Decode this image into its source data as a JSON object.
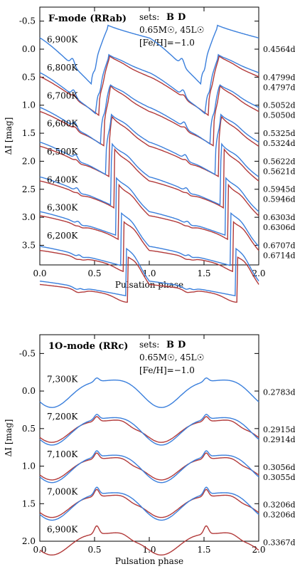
{
  "colors": {
    "set_B": "#3a7fdc",
    "set_D": "#b23a3a",
    "axis": "#000000"
  },
  "chart_data": [
    {
      "type": "line",
      "title": "F-mode (RRab)",
      "xlabel": "Pulsation phase",
      "ylabel": "ΔI [mag]",
      "xlim": [
        0.0,
        2.0
      ],
      "ylim": [
        -0.75,
        3.85
      ],
      "y_inverted": true,
      "x_ticks": [
        "0.0",
        "0.5",
        "1.0",
        "1.5",
        "2.0"
      ],
      "y_ticks": [
        "-0.5",
        "0.0",
        "0.5",
        "1.0",
        "1.5",
        "2.0",
        "2.5",
        "3.0",
        "3.5"
      ],
      "legend": {
        "sets_label": "sets:",
        "set_B": "B",
        "set_D": "D",
        "params_line1": "0.65M☉, 45L☉",
        "params_line2": "[Fe/H]=−1.0"
      },
      "models": [
        {
          "teff": "6,900K",
          "offset": 0.0,
          "period_B": "0.4564d",
          "period_D": ""
        },
        {
          "teff": "6,800K",
          "offset": 0.5,
          "period_B": "0.4799d",
          "period_D": "0.4797d"
        },
        {
          "teff": "6,700K",
          "offset": 1.0,
          "period_B": "0.5052d",
          "period_D": "0.5050d"
        },
        {
          "teff": "6,600K",
          "offset": 1.5,
          "period_B": "0.5325d",
          "period_D": "0.5324d"
        },
        {
          "teff": "6,500K",
          "offset": 2.0,
          "period_B": "0.5622d",
          "period_D": "0.5621d"
        },
        {
          "teff": "6,400K",
          "offset": 2.5,
          "period_B": "0.5945d",
          "period_D": "0.5946d"
        },
        {
          "teff": "6,300K",
          "offset": 3.0,
          "period_B": "0.6303d",
          "period_D": "0.6306d"
        },
        {
          "teff": "6,200K",
          "offset": 3.5,
          "period_B": "0.6707d",
          "period_D": "0.6714d"
        }
      ]
    },
    {
      "type": "line",
      "title": "1O-mode (RRc)",
      "xlabel": "Pulsation phase",
      "ylabel": "ΔI [mag]",
      "xlim": [
        0.0,
        2.0
      ],
      "ylim": [
        -0.75,
        2.0
      ],
      "y_inverted": true,
      "x_ticks": [
        "0.0",
        "0.5",
        "1.0",
        "1.5",
        "2.0"
      ],
      "y_ticks": [
        "-0.5",
        "0.0",
        "0.5",
        "1.0",
        "1.5",
        "2.0"
      ],
      "legend": {
        "sets_label": "sets:",
        "set_B": "B",
        "set_D": "D",
        "params_line1": "0.65M☉, 45L☉",
        "params_line2": "[Fe/H]=−1.0"
      },
      "models": [
        {
          "teff": "7,300K",
          "offset": 0.0,
          "period_B": "0.2783d",
          "period_D": ""
        },
        {
          "teff": "7,200K",
          "offset": 0.5,
          "period_B": "0.2915d",
          "period_D": "0.2914d"
        },
        {
          "teff": "7,100K",
          "offset": 1.0,
          "period_B": "0.3056d",
          "period_D": "0.3055d"
        },
        {
          "teff": "7,000K",
          "offset": 1.5,
          "period_B": "0.3206d",
          "period_D": "0.3206d"
        },
        {
          "teff": "6,900K",
          "offset": 2.0,
          "period_B": "",
          "period_D": "0.3367d"
        }
      ]
    }
  ]
}
